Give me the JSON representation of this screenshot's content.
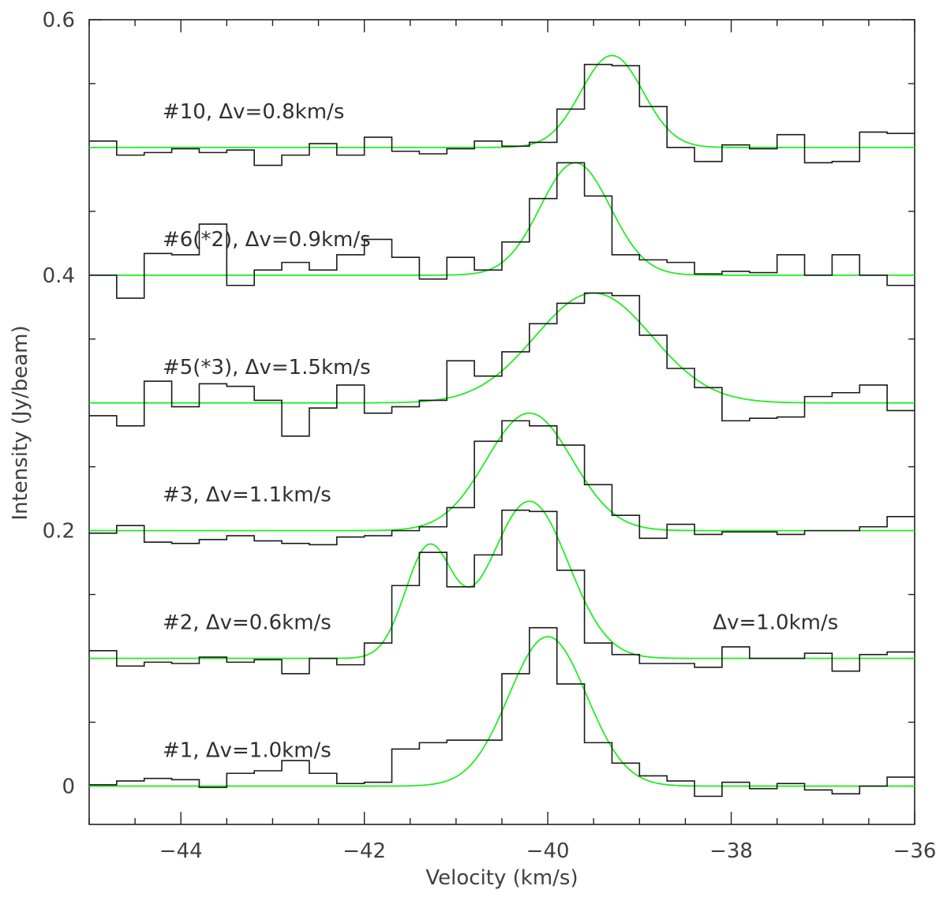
{
  "chart_data": {
    "type": "line",
    "xlabel": "Velocity (km/s)",
    "ylabel": "Intensity (Jy/beam)",
    "xlim": [
      -45,
      -36
    ],
    "ylim": [
      -0.03,
      0.6
    ],
    "x_ticks": [
      -44,
      -42,
      -40,
      -38,
      -36
    ],
    "x_tick_labels": [
      "−44",
      "−42",
      "−40",
      "−38",
      "−36"
    ],
    "y_ticks": [
      0,
      0.2,
      0.4,
      0.6
    ],
    "y_tick_labels": [
      "0",
      "0.2",
      "0.4",
      "0.6"
    ],
    "x_minor_step": 0.5,
    "y_minor_step": 0.05,
    "colors": {
      "observed": "#1a1a1a",
      "fit": "#22ee22",
      "frame": "#222222"
    },
    "channel_x": [
      -44.85,
      -44.55,
      -44.25,
      -43.95,
      -43.65,
      -43.35,
      -43.05,
      -42.75,
      -42.45,
      -42.15,
      -41.85,
      -41.55,
      -41.25,
      -40.95,
      -40.65,
      -40.35,
      -40.05,
      -39.75,
      -39.45,
      -39.15,
      -38.85,
      -38.55,
      -38.25,
      -37.95,
      -37.65,
      -37.35,
      -37.05,
      -36.75,
      -36.45,
      -36.15
    ],
    "series": [
      {
        "label": "#10, Δv=0.8km/s",
        "baseline": 0.5,
        "label_anchor": [
          -44.2,
          0.529
        ],
        "observed": [
          0.505,
          0.494,
          0.496,
          0.499,
          0.496,
          0.498,
          0.486,
          0.494,
          0.503,
          0.494,
          0.508,
          0.497,
          0.495,
          0.499,
          0.505,
          0.501,
          0.504,
          0.53,
          0.565,
          0.564,
          0.532,
          0.5,
          0.489,
          0.502,
          0.499,
          0.51,
          0.488,
          0.489,
          0.512,
          0.511
        ],
        "fit": {
          "components": [
            {
              "center": -39.3,
              "amplitude": 0.072,
              "fwhm": 0.8
            }
          ]
        }
      },
      {
        "label": "#6(*2), Δv=0.9km/s",
        "baseline": 0.4,
        "label_anchor": [
          -44.2,
          0.429
        ],
        "observed": [
          0.4,
          0.382,
          0.417,
          0.416,
          0.44,
          0.392,
          0.404,
          0.41,
          0.404,
          0.416,
          0.428,
          0.414,
          0.397,
          0.414,
          0.404,
          0.426,
          0.46,
          0.488,
          0.462,
          0.416,
          0.412,
          0.41,
          0.401,
          0.403,
          0.402,
          0.416,
          0.4,
          0.416,
          0.4,
          0.392
        ],
        "fit": {
          "components": [
            {
              "center": -39.7,
              "amplitude": 0.088,
              "fwhm": 0.9
            }
          ]
        }
      },
      {
        "label": "#5(*3), Δv=1.5km/s",
        "baseline": 0.3,
        "label_anchor": [
          -44.2,
          0.329
        ],
        "observed": [
          0.29,
          0.282,
          0.317,
          0.297,
          0.315,
          0.313,
          0.302,
          0.274,
          0.296,
          0.314,
          0.292,
          0.297,
          0.302,
          0.333,
          0.321,
          0.34,
          0.362,
          0.378,
          0.386,
          0.384,
          0.353,
          0.327,
          0.312,
          0.286,
          0.288,
          0.289,
          0.305,
          0.308,
          0.314,
          0.294
        ],
        "fit": {
          "components": [
            {
              "center": -39.5,
              "amplitude": 0.086,
              "fwhm": 1.5
            }
          ]
        }
      },
      {
        "label": "#3, Δv=1.1km/s",
        "baseline": 0.2,
        "label_anchor": [
          -44.2,
          0.229
        ],
        "observed": [
          0.198,
          0.204,
          0.191,
          0.19,
          0.193,
          0.196,
          0.192,
          0.19,
          0.189,
          0.195,
          0.196,
          0.2,
          0.203,
          0.218,
          0.27,
          0.286,
          0.282,
          0.267,
          0.236,
          0.212,
          0.194,
          0.205,
          0.197,
          0.199,
          0.199,
          0.197,
          0.2,
          0.2,
          0.203,
          0.211
        ],
        "fit": {
          "components": [
            {
              "center": -40.2,
              "amplitude": 0.092,
              "fwhm": 1.1
            }
          ]
        }
      },
      {
        "label": "#2, Δv=0.6km/s",
        "baseline": 0.1,
        "label_anchor": [
          -44.2,
          0.129
        ],
        "observed": [
          0.106,
          0.094,
          0.097,
          0.096,
          0.101,
          0.097,
          0.099,
          0.088,
          0.1,
          0.095,
          0.112,
          0.157,
          0.183,
          0.156,
          0.181,
          0.216,
          0.215,
          0.169,
          0.112,
          0.103,
          0.096,
          0.096,
          0.093,
          0.109,
          0.1,
          0.1,
          0.104,
          0.09,
          0.103,
          0.105
        ],
        "fit": {
          "components": [
            {
              "center": -41.3,
              "amplitude": 0.085,
              "fwhm": 0.6
            },
            {
              "center": -40.2,
              "amplitude": 0.123,
              "fwhm": 1.0
            }
          ]
        }
      },
      {
        "label": "#1, Δv=1.0km/s",
        "baseline": 0.0,
        "label_anchor": [
          -44.2,
          0.029
        ],
        "observed": [
          0.001,
          0.004,
          0.006,
          0.005,
          -0.001,
          0.01,
          0.012,
          0.02,
          0.01,
          0.002,
          0.003,
          0.029,
          0.034,
          0.036,
          0.036,
          0.088,
          0.124,
          0.08,
          0.034,
          0.018,
          0.008,
          0.004,
          -0.008,
          0.003,
          -0.002,
          0.002,
          -0.003,
          -0.006,
          0.0,
          0.007
        ],
        "fit": {
          "components": [
            {
              "center": -40.0,
              "amplitude": 0.117,
              "fwhm": 1.0
            }
          ]
        }
      }
    ],
    "extra_annotations": [
      {
        "text": "Δv=1.0km/s",
        "anchor": [
          -38.2,
          0.129
        ]
      }
    ]
  }
}
